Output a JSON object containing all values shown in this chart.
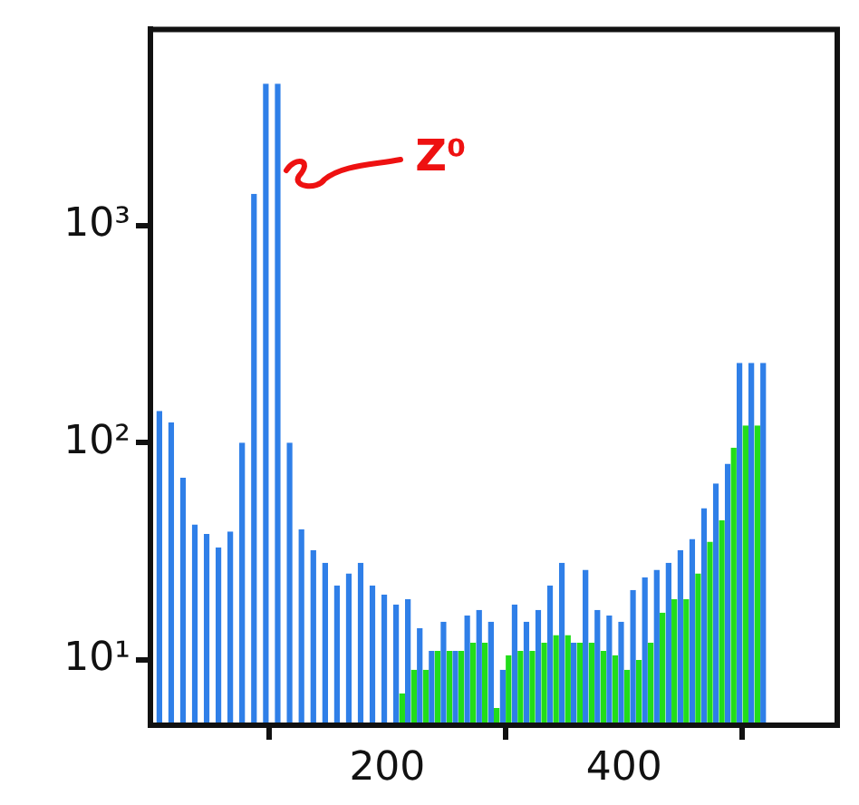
{
  "chart_data": {
    "type": "histogram",
    "log": "y",
    "grid": false,
    "legend": false,
    "bins": [
      0,
      10,
      20,
      30,
      40,
      50,
      60,
      70,
      80,
      90,
      100,
      110,
      120,
      130,
      140,
      150,
      160,
      170,
      180,
      190,
      200,
      210,
      220,
      230,
      240,
      250,
      260,
      270,
      280,
      290,
      300,
      310,
      320,
      330,
      340,
      350,
      360,
      370,
      380,
      390,
      400,
      410,
      420,
      430,
      440,
      450,
      460,
      470,
      480,
      490,
      500,
      510,
      520
    ],
    "series": [
      {
        "color": "#2f7fe8",
        "values": [
          140,
          124,
          69,
          42,
          38,
          33,
          39,
          100,
          1400,
          4500,
          4500,
          100,
          40,
          32,
          28,
          22,
          25,
          28,
          22,
          20,
          18,
          19,
          14,
          11,
          15,
          11,
          16,
          17,
          15,
          9,
          18,
          15,
          17,
          22,
          28,
          12,
          26,
          17,
          16,
          15,
          21,
          24,
          26,
          28,
          32,
          36,
          50,
          65,
          80,
          233,
          233,
          233
        ]
      },
      {
        "color": "#22dd1a",
        "values": [
          null,
          null,
          null,
          null,
          null,
          null,
          null,
          null,
          null,
          null,
          null,
          null,
          null,
          null,
          null,
          null,
          null,
          null,
          null,
          null,
          null,
          7,
          9,
          9,
          11,
          11,
          11,
          12,
          12,
          6,
          10.5,
          11,
          11,
          12,
          13,
          13,
          12,
          12,
          11,
          10.5,
          9,
          10,
          12,
          16.5,
          19,
          19,
          25,
          35,
          44,
          95,
          120,
          120
        ]
      }
    ],
    "xlim": [
      0,
      580
    ],
    "xticks": [
      200,
      400
    ],
    "ylim": [
      5,
      8000
    ],
    "yticks": [
      {
        "value": 10,
        "label": "10¹"
      },
      {
        "value": 100,
        "label": "10²"
      },
      {
        "value": 1000,
        "label": "10³"
      }
    ],
    "annotations": [
      {
        "text": "Z⁰",
        "x": 112,
        "y": 1800
      }
    ]
  }
}
